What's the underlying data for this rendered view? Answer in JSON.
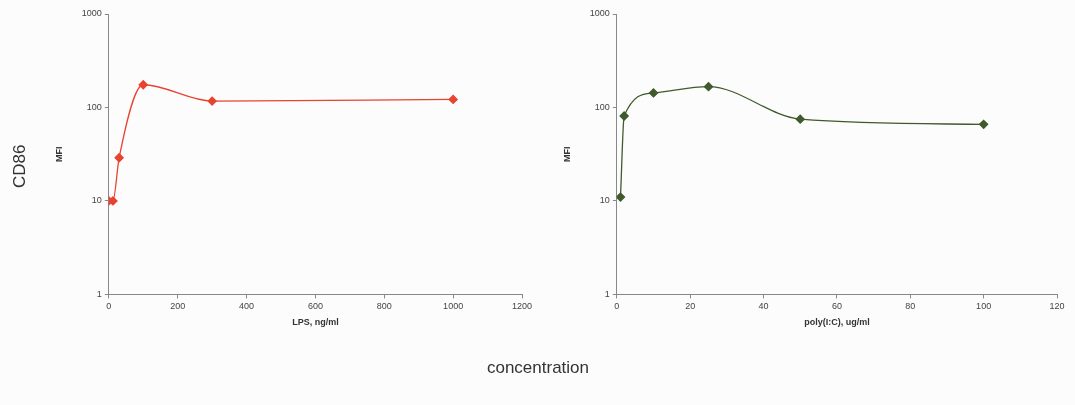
{
  "chart_data": [
    {
      "type": "line",
      "xlabel": "LPS, ng/ml",
      "ylabel": "MFI",
      "log": "y",
      "marker": "diamond",
      "grid": false,
      "legend": false,
      "annotations": [
        "CD86",
        "concentration"
      ],
      "xlim": [
        0,
        1200
      ],
      "xticks": [
        0,
        200,
        400,
        600,
        800,
        1000,
        1200
      ],
      "ylim": [
        1,
        1000
      ],
      "yticks": [
        1,
        10,
        100,
        1000
      ],
      "series": [
        {
          "color": "#e8432f",
          "x": [
            0,
            12,
            30,
            100,
            300,
            1000
          ],
          "values": [
            10,
            10,
            29,
            175,
            117,
            122
          ]
        }
      ]
    },
    {
      "type": "line",
      "xlabel": "poly(I:C), ug/ml",
      "ylabel": "MFI",
      "log": "y",
      "marker": "diamond",
      "grid": false,
      "legend": false,
      "xlim": [
        0,
        120
      ],
      "xticks": [
        0,
        20,
        40,
        60,
        80,
        100,
        120
      ],
      "ylim": [
        1,
        1000
      ],
      "yticks": [
        1,
        10,
        100,
        1000
      ],
      "series": [
        {
          "color": "#3f5a2c",
          "x": [
            1,
            2,
            10,
            25,
            50,
            100
          ],
          "values": [
            11,
            81,
            143,
            167,
            75,
            66
          ]
        }
      ]
    }
  ]
}
